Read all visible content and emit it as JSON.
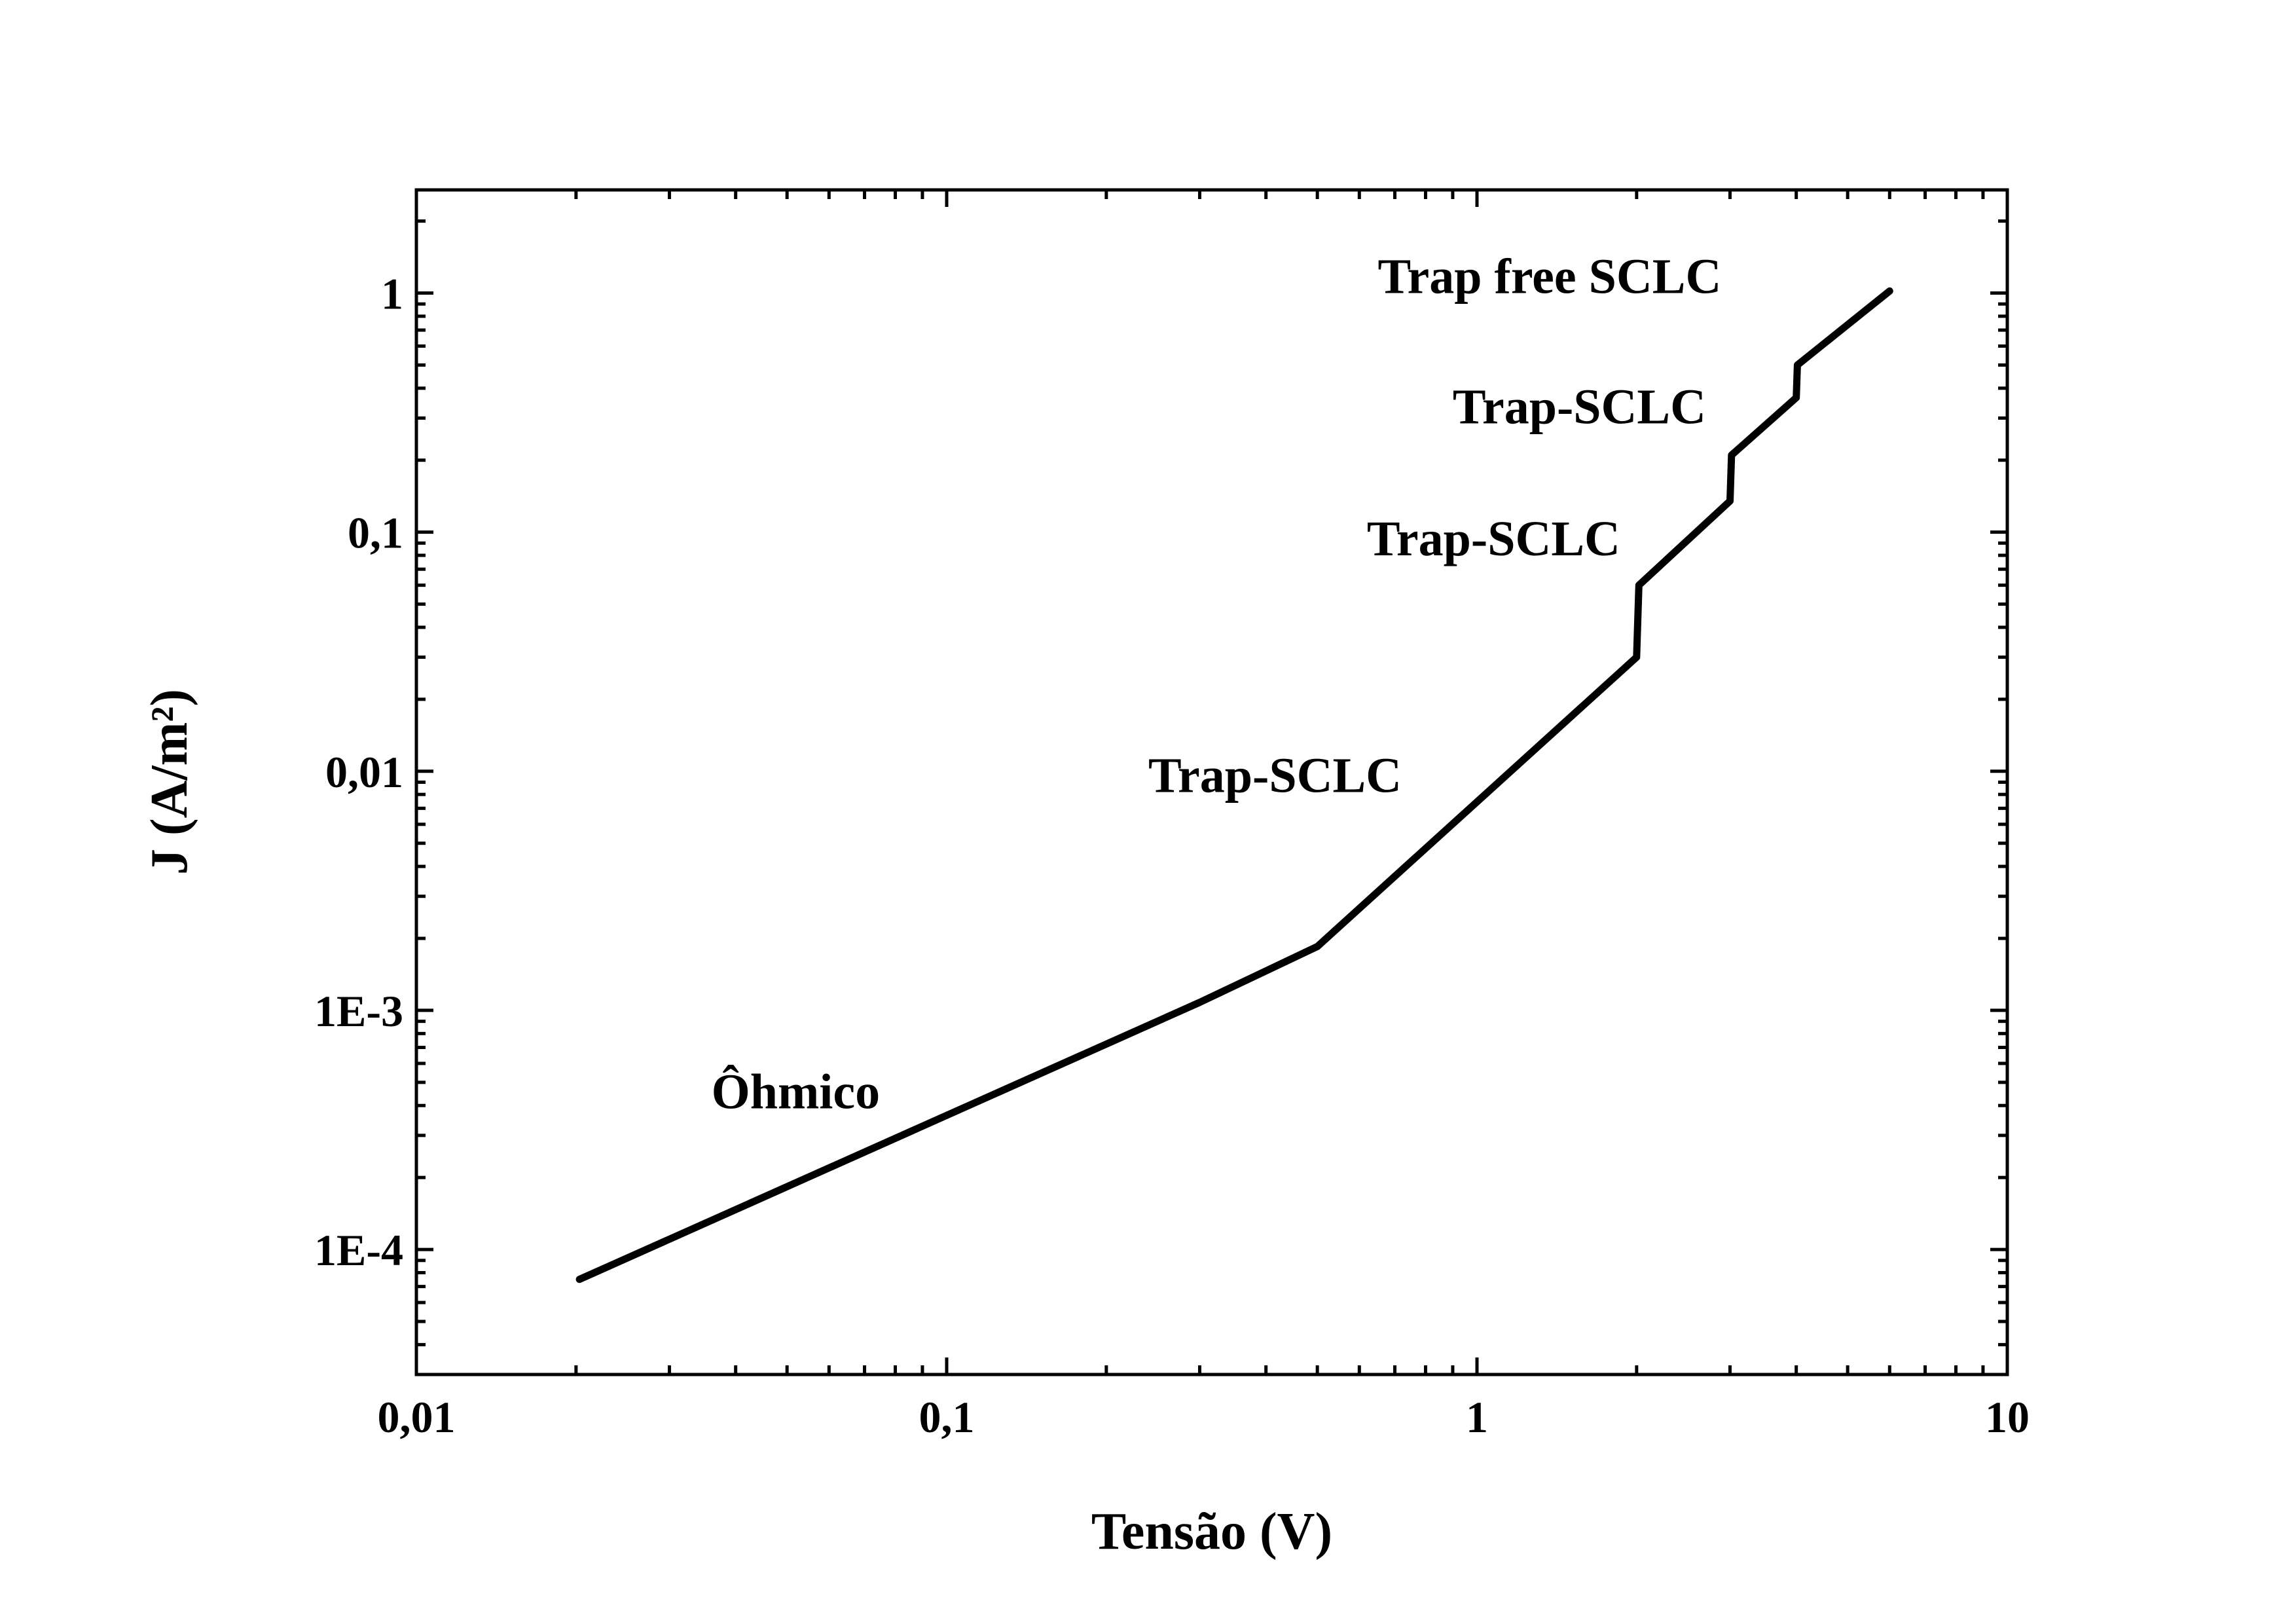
{
  "chart_data": {
    "type": "line",
    "xlabel": "Tensão (V)",
    "ylabel": "J (A/m²)",
    "xscale": "log",
    "yscale": "log",
    "xlim": [
      0.01,
      10
    ],
    "ylim": [
      3e-05,
      2.7
    ],
    "grid": false,
    "x_ticks": [
      {
        "value": 0.01,
        "label": "0,01"
      },
      {
        "value": 0.1,
        "label": "0,1"
      },
      {
        "value": 1,
        "label": "1"
      },
      {
        "value": 10,
        "label": "10"
      }
    ],
    "y_ticks": [
      {
        "value": 0.0001,
        "label": "1E-4"
      },
      {
        "value": 0.001,
        "label": "1E-3"
      },
      {
        "value": 0.01,
        "label": "0,01"
      },
      {
        "value": 0.1,
        "label": "0,1"
      },
      {
        "value": 1,
        "label": "1"
      }
    ],
    "series": [
      {
        "color": "#000000",
        "points": [
          [
            0.0203,
            7.5e-05
          ],
          [
            0.3,
            0.00108
          ],
          [
            0.5,
            0.00185
          ],
          [
            2.0,
            0.03
          ],
          [
            2.02,
            0.06
          ],
          [
            3.0,
            0.135
          ],
          [
            3.02,
            0.21
          ],
          [
            4.0,
            0.365
          ],
          [
            4.02,
            0.5
          ],
          [
            6.0,
            1.02
          ]
        ]
      }
    ],
    "annotations": [
      {
        "text": "Ôhmico",
        "x": 0.036,
        "y": 0.00039
      },
      {
        "text": "Trap-SCLC",
        "x": 0.24,
        "y": 0.0082
      },
      {
        "text": "Trap-SCLC",
        "x": 0.62,
        "y": 0.08
      },
      {
        "text": "Trap-SCLC",
        "x": 0.9,
        "y": 0.285
      },
      {
        "text": "Trap free SCLC",
        "x": 0.65,
        "y": 1.0
      }
    ]
  }
}
